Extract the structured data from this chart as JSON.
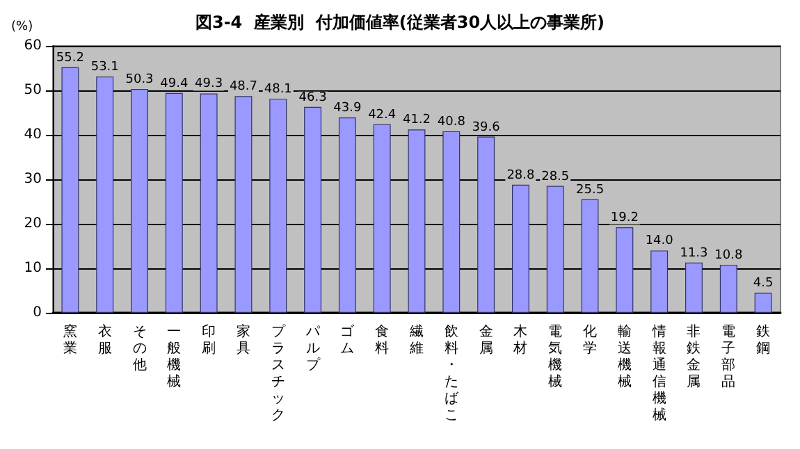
{
  "chart_data": {
    "type": "bar",
    "title": "図3-4  産業別  付加価値率(従業者30人以上の事業所)",
    "ylabel": "(%)",
    "categories": [
      "窯業",
      "衣服",
      "その他",
      "一般機械",
      "印刷",
      "家具",
      "プラスチック",
      "パルプ",
      "ゴム",
      "食料",
      "繊維",
      "飲料・たばこ",
      "金属",
      "木材",
      "電気機械",
      "化学",
      "輸送機械",
      "情報通信機械",
      "非鉄金属",
      "電子部品",
      "鉄鋼"
    ],
    "values": [
      55.2,
      53.1,
      50.3,
      49.4,
      49.3,
      48.7,
      48.1,
      46.3,
      43.9,
      42.4,
      41.2,
      40.8,
      39.6,
      28.8,
      28.5,
      25.5,
      19.2,
      14.0,
      11.3,
      10.8,
      4.5
    ],
    "value_labels": [
      "55.2",
      "53.1",
      "50.3",
      "49.4",
      "49.3",
      "48.7",
      "48.1",
      "46.3",
      "43.9",
      "42.4",
      "41.2",
      "40.8",
      "39.6",
      "28.8",
      "28.5",
      "25.5",
      "19.2",
      "14.0",
      "11.3",
      "10.8",
      "4.5"
    ],
    "color": "#9999ff",
    "ylim": [
      0,
      60
    ],
    "yticks": [
      0,
      10,
      20,
      30,
      40,
      50,
      60
    ],
    "grid": "y"
  }
}
